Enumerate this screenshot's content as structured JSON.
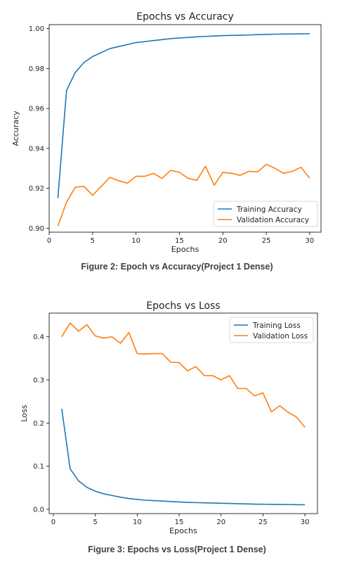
{
  "chart_data": [
    {
      "type": "line",
      "title": "Epochs vs Accuracy",
      "xlabel": "Epochs",
      "ylabel": "Accuracy",
      "xlim": [
        0,
        31.3
      ],
      "ylim": [
        0.898,
        1.002
      ],
      "xticks": [
        0,
        5,
        10,
        15,
        20,
        25,
        30
      ],
      "yticks": [
        0.9,
        0.92,
        0.94,
        0.96,
        0.98,
        1.0
      ],
      "ytick_format": 2,
      "grid": false,
      "legend_position": "bottom-right",
      "x": [
        1,
        2,
        3,
        4,
        5,
        6,
        7,
        8,
        9,
        10,
        11,
        12,
        13,
        14,
        15,
        16,
        17,
        18,
        19,
        20,
        21,
        22,
        23,
        24,
        25,
        26,
        27,
        28,
        29,
        30
      ],
      "series": [
        {
          "name": "Training Accuracy",
          "color": "#1f77b4",
          "values": [
            0.915,
            0.969,
            0.978,
            0.983,
            0.986,
            0.988,
            0.99,
            0.991,
            0.992,
            0.993,
            0.9935,
            0.994,
            0.9945,
            0.995,
            0.9953,
            0.9956,
            0.9959,
            0.9961,
            0.9963,
            0.9965,
            0.9966,
            0.9967,
            0.9968,
            0.997,
            0.9971,
            0.9972,
            0.9973,
            0.9973,
            0.9974,
            0.9975
          ]
        },
        {
          "name": "Validation Accuracy",
          "color": "#ff7f0e",
          "values": [
            0.901,
            0.913,
            0.9205,
            0.921,
            0.9165,
            0.921,
            0.9255,
            0.9238,
            0.9225,
            0.926,
            0.926,
            0.9275,
            0.925,
            0.929,
            0.928,
            0.925,
            0.924,
            0.931,
            0.9215,
            0.928,
            0.9275,
            0.9265,
            0.9285,
            0.9282,
            0.932,
            0.93,
            0.9275,
            0.9285,
            0.9305,
            0.925
          ]
        }
      ],
      "caption": "Figure 2: Epoch vs Accuracy(Project 1 Dense)"
    },
    {
      "type": "line",
      "title": "Epochs vs Loss",
      "xlabel": "Epochs",
      "ylabel": "Loss",
      "xlim": [
        -0.5,
        31.5
      ],
      "ylim": [
        -0.01,
        0.455
      ],
      "xticks": [
        0,
        5,
        10,
        15,
        20,
        25,
        30
      ],
      "yticks": [
        0.0,
        0.1,
        0.2,
        0.3,
        0.4
      ],
      "ytick_format": 1,
      "grid": false,
      "legend_position": "top-right",
      "x": [
        1,
        2,
        3,
        4,
        5,
        6,
        7,
        8,
        9,
        10,
        11,
        12,
        13,
        14,
        15,
        16,
        17,
        18,
        19,
        20,
        21,
        22,
        23,
        24,
        25,
        26,
        27,
        28,
        29,
        30
      ],
      "series": [
        {
          "name": "Training Loss",
          "color": "#1f77b4",
          "values": [
            0.233,
            0.094,
            0.066,
            0.051,
            0.042,
            0.036,
            0.032,
            0.028,
            0.025,
            0.023,
            0.021,
            0.02,
            0.019,
            0.018,
            0.017,
            0.016,
            0.0155,
            0.015,
            0.0145,
            0.014,
            0.0135,
            0.013,
            0.0125,
            0.012,
            0.0118,
            0.0115,
            0.0113,
            0.011,
            0.0107,
            0.0105
          ]
        },
        {
          "name": "Validation Loss",
          "color": "#ff7f0e",
          "values": [
            0.4,
            0.432,
            0.413,
            0.428,
            0.402,
            0.397,
            0.4,
            0.385,
            0.41,
            0.361,
            0.36,
            0.361,
            0.361,
            0.341,
            0.34,
            0.321,
            0.331,
            0.31,
            0.31,
            0.3,
            0.31,
            0.28,
            0.28,
            0.263,
            0.27,
            0.226,
            0.24,
            0.225,
            0.214,
            0.19
          ]
        }
      ],
      "caption": "Figure 3: Epochs vs Loss(Project 1 Dense)"
    }
  ]
}
